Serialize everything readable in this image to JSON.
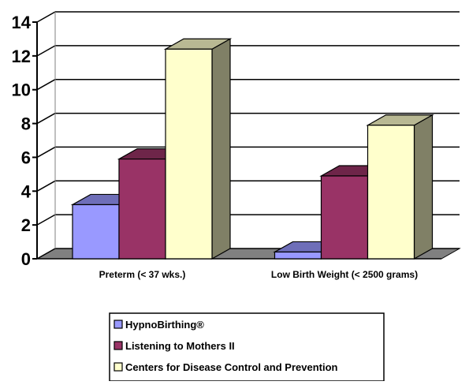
{
  "chart_data": {
    "type": "bar",
    "style": "3d-clustered",
    "categories": [
      "Preterm (< 37 wks.)",
      "Low Birth Weight (< 2500 grams)"
    ],
    "series": [
      {
        "name": "HypnoBirthing®",
        "values": [
          3.2,
          0.4
        ],
        "color": "#9999ff"
      },
      {
        "name": "Listening to Mothers II",
        "values": [
          5.9,
          4.9
        ],
        "color": "#993366"
      },
      {
        "name": "Centers for Disease Control and Prevention",
        "values": [
          12.4,
          7.9
        ],
        "color": "#ffffcc"
      }
    ],
    "ylim": [
      0,
      14
    ],
    "yticks": [
      0,
      2,
      4,
      6,
      8,
      10,
      12,
      14
    ],
    "title": "",
    "xlabel": "",
    "ylabel": "",
    "grid": true,
    "legend_position": "bottom"
  }
}
